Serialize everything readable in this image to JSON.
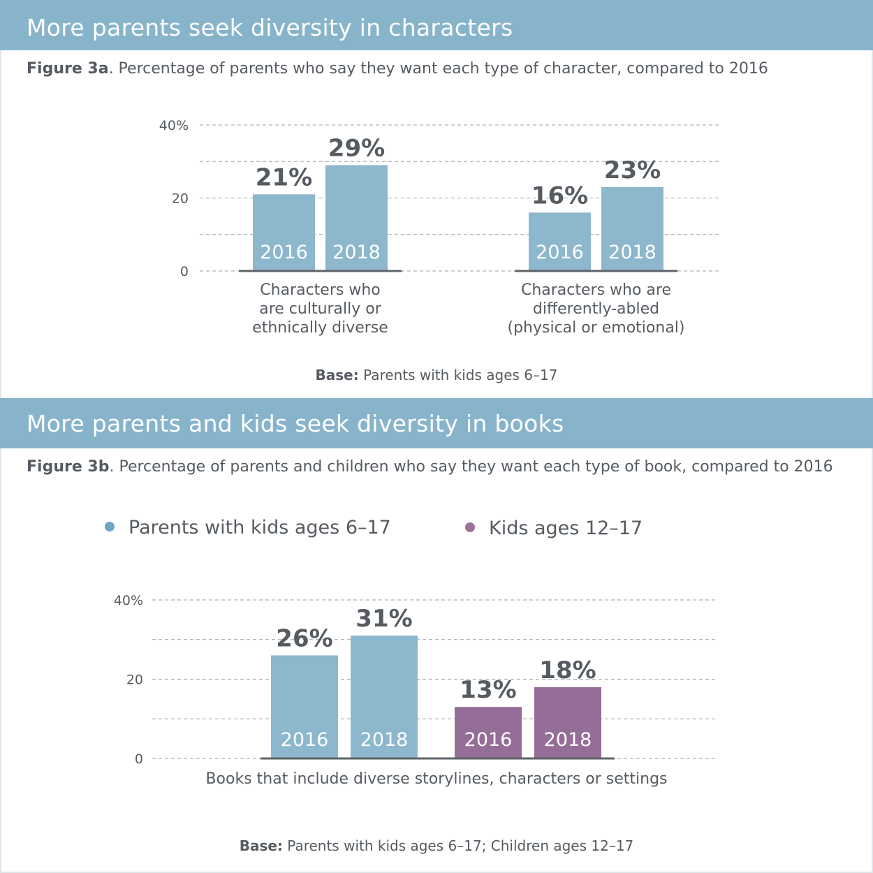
{
  "figA": {
    "banner": "More parents seek diversity in characters",
    "fig_label": "Figure 3a",
    "subtitle": ". Percentage of parents who say they want each type of character, compared to 2016",
    "base_label": "Base:",
    "base_text": " Parents with kids ages 6–17"
  },
  "figB": {
    "banner": "More parents and kids seek diversity in books",
    "fig_label": "Figure 3b",
    "subtitle": ". Percentage of parents and children who say they want each type of book, compared to 2016",
    "base_label": "Base:",
    "base_text": " Parents with kids ages 6–17; Children ages 12–17",
    "legend": [
      {
        "name": "Parents with kids ages 6–17",
        "color": "#6fa5c2"
      },
      {
        "name": "Kids ages 12–17",
        "color": "#9a7399"
      }
    ]
  },
  "colors": {
    "blue_bar": "#8db7cc",
    "purple_bar": "#946e96",
    "banner": "#88b4cb",
    "text": "#555b61"
  },
  "chart_data": [
    {
      "type": "bar",
      "title": "Percentage of parents who say they want each type of character, compared to 2016",
      "ylim": [
        0,
        40
      ],
      "yticks": [
        "0",
        "20",
        "40%"
      ],
      "groups": [
        {
          "category_lines": [
            "Characters who",
            "are culturally or",
            "ethnically diverse"
          ],
          "bars": [
            {
              "year": "2016",
              "value": 21,
              "label": "21%",
              "color": "#8db7cc"
            },
            {
              "year": "2018",
              "value": 29,
              "label": "29%",
              "color": "#8db7cc"
            }
          ]
        },
        {
          "category_lines": [
            "Characters who are",
            "differently-abled",
            "(physical or emotional)"
          ],
          "bars": [
            {
              "year": "2016",
              "value": 16,
              "label": "16%",
              "color": "#8db7cc"
            },
            {
              "year": "2018",
              "value": 23,
              "label": "23%",
              "color": "#8db7cc"
            }
          ]
        }
      ]
    },
    {
      "type": "bar",
      "title": "Percentage of parents and children who say they want each type of book, compared to 2016",
      "ylim": [
        0,
        40
      ],
      "yticks": [
        "0",
        "20",
        "40%"
      ],
      "category": "Books that include diverse storylines, characters or settings",
      "series": [
        {
          "name": "Parents with kids ages 6–17",
          "color": "#8db7cc",
          "bars": [
            {
              "year": "2016",
              "value": 26,
              "label": "26%"
            },
            {
              "year": "2018",
              "value": 31,
              "label": "31%"
            }
          ]
        },
        {
          "name": "Kids ages 12–17",
          "color": "#946e96",
          "bars": [
            {
              "year": "2016",
              "value": 13,
              "label": "13%"
            },
            {
              "year": "2018",
              "value": 18,
              "label": "18%"
            }
          ]
        }
      ]
    }
  ]
}
